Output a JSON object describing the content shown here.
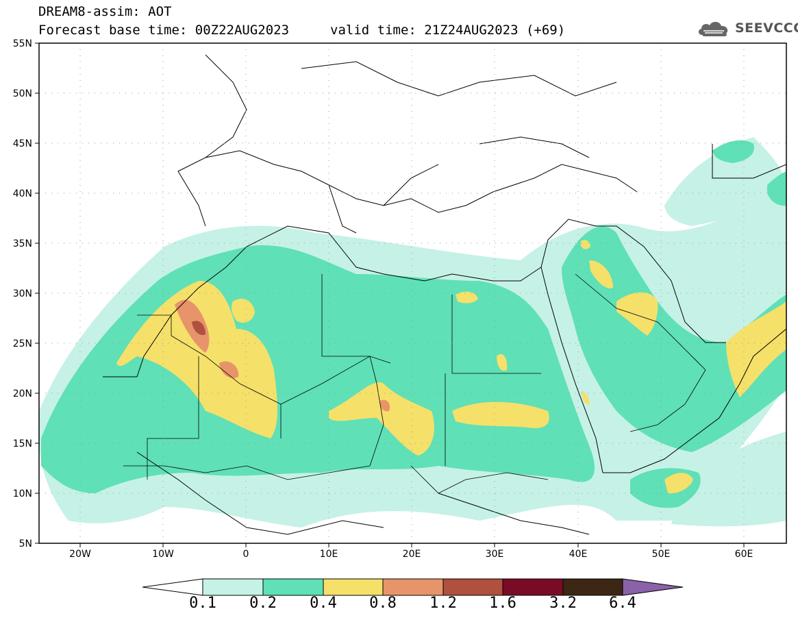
{
  "header": {
    "title": "DREAM8-assim: AOT",
    "base_time": "Forecast base time: 00Z22AUG2023",
    "valid_time": "valid time: 21Z24AUG2023 (+69)"
  },
  "logo": {
    "text": "SEEVCCC",
    "icon": "cloud-logo-icon"
  },
  "map": {
    "lon_range": [
      -25,
      65
    ],
    "lat_range": [
      5,
      55
    ],
    "x_ticks": [
      "20W",
      "10W",
      "0",
      "10E",
      "20E",
      "30E",
      "40E",
      "50E",
      "60E"
    ],
    "y_ticks": [
      "55N",
      "50N",
      "45N",
      "40N",
      "35N",
      "30N",
      "25N",
      "20N",
      "15N",
      "10N",
      "5N"
    ]
  },
  "colorbar": {
    "labels": [
      "0.1",
      "0.2",
      "0.4",
      "0.8",
      "1.2",
      "1.6",
      "3.2",
      "6.4"
    ],
    "colors": [
      "#c6f1e6",
      "#5fe0b6",
      "#f5e06a",
      "#e8946b",
      "#b0503e",
      "#7a0b26",
      "#3b2713",
      "#8a62a8"
    ]
  }
}
